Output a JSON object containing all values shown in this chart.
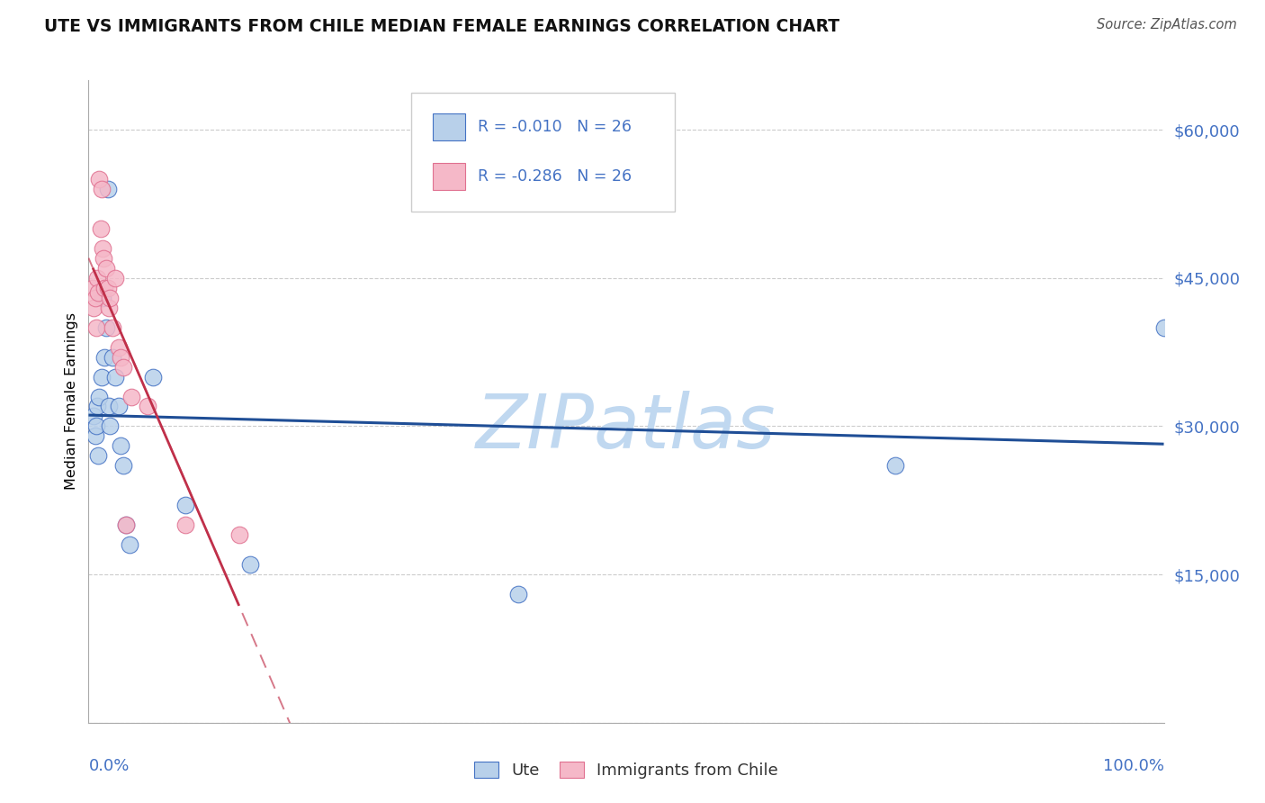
{
  "title": "UTE VS IMMIGRANTS FROM CHILE MEDIAN FEMALE EARNINGS CORRELATION CHART",
  "source": "Source: ZipAtlas.com",
  "ylabel": "Median Female Earnings",
  "ytick_labels": [
    "",
    "$15,000",
    "$30,000",
    "$45,000",
    "$60,000"
  ],
  "ytick_values": [
    0,
    15000,
    30000,
    45000,
    60000
  ],
  "ylim": [
    0,
    65000
  ],
  "xlim": [
    0.0,
    1.0
  ],
  "bottom_legend_label1": "Ute",
  "bottom_legend_label2": "Immigrants from Chile",
  "watermark": "ZIPatlas",
  "ute_x": [
    0.005,
    0.006,
    0.007,
    0.008,
    0.009,
    0.01,
    0.012,
    0.013,
    0.015,
    0.016,
    0.018,
    0.019,
    0.02,
    0.022,
    0.025,
    0.028,
    0.03,
    0.032,
    0.035,
    0.038,
    0.06,
    0.09,
    0.15,
    0.4,
    0.75,
    1.0
  ],
  "ute_y": [
    31000,
    29000,
    30000,
    32000,
    27000,
    33000,
    35000,
    43000,
    37000,
    40000,
    54000,
    32000,
    30000,
    37000,
    35000,
    32000,
    28000,
    26000,
    20000,
    18000,
    35000,
    22000,
    16000,
    13000,
    26000,
    40000
  ],
  "chile_x": [
    0.004,
    0.005,
    0.006,
    0.007,
    0.008,
    0.009,
    0.01,
    0.011,
    0.012,
    0.013,
    0.014,
    0.015,
    0.016,
    0.018,
    0.019,
    0.02,
    0.022,
    0.025,
    0.028,
    0.03,
    0.032,
    0.035,
    0.04,
    0.055,
    0.09,
    0.14
  ],
  "chile_y": [
    44000,
    42000,
    43000,
    40000,
    45000,
    43500,
    55000,
    50000,
    54000,
    48000,
    47000,
    44000,
    46000,
    44000,
    42000,
    43000,
    40000,
    45000,
    38000,
    37000,
    36000,
    20000,
    33000,
    32000,
    20000,
    19000
  ],
  "ute_dot_color": "#b8d0ea",
  "ute_dot_edge": "#4472c4",
  "chile_dot_color": "#f5b8c8",
  "chile_dot_edge": "#e07090",
  "ute_line_color": "#1f4e96",
  "chile_line_color": "#c0304a",
  "grid_color": "#cccccc",
  "title_color": "#111111",
  "source_color": "#555555",
  "tick_color": "#4472c4",
  "watermark_color": "#c0d8f0",
  "legend_box_edge": "#cccccc",
  "legend_text_color": "#4472c4"
}
